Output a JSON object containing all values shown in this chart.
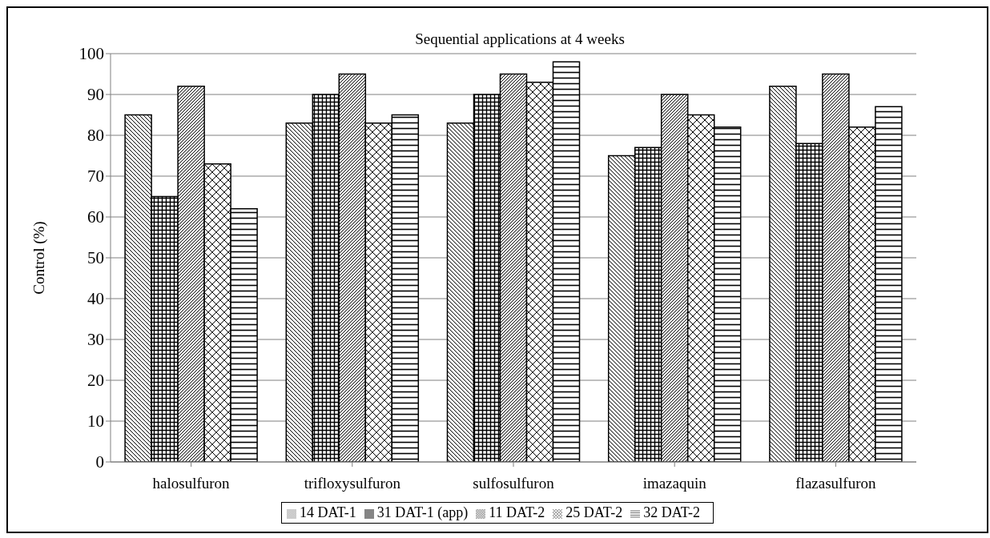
{
  "chart_data": {
    "type": "bar",
    "title": "Sequential applications at 4 weeks",
    "ylabel": "Control (%)",
    "categories": [
      "halosulfuron",
      "trifloxysulfuron",
      "sulfosulfuron",
      "imazaquin",
      "flazasulfuron"
    ],
    "series": [
      {
        "name": "14 DAT-1",
        "color": "#000000",
        "values": [
          85,
          83,
          83,
          75,
          92
        ]
      },
      {
        "name": "31 DAT-1 (app)",
        "color": "#000000",
        "values": [
          65,
          90,
          90,
          77,
          78
        ]
      },
      {
        "name": "11 DAT-2",
        "color": "#000000",
        "values": [
          92,
          95,
          95,
          90,
          95
        ]
      },
      {
        "name": "25 DAT-2",
        "color": "#000000",
        "values": [
          73,
          83,
          93,
          85,
          82
        ]
      },
      {
        "name": "32 DAT-2",
        "color": "#000000",
        "values": [
          62,
          85,
          98,
          82,
          87
        ]
      }
    ],
    "ylim": [
      0,
      100
    ],
    "yticks": [
      0,
      10,
      20,
      30,
      40,
      50,
      60,
      70,
      80,
      90,
      100
    ],
    "grid": "y",
    "legend": "bottom"
  }
}
